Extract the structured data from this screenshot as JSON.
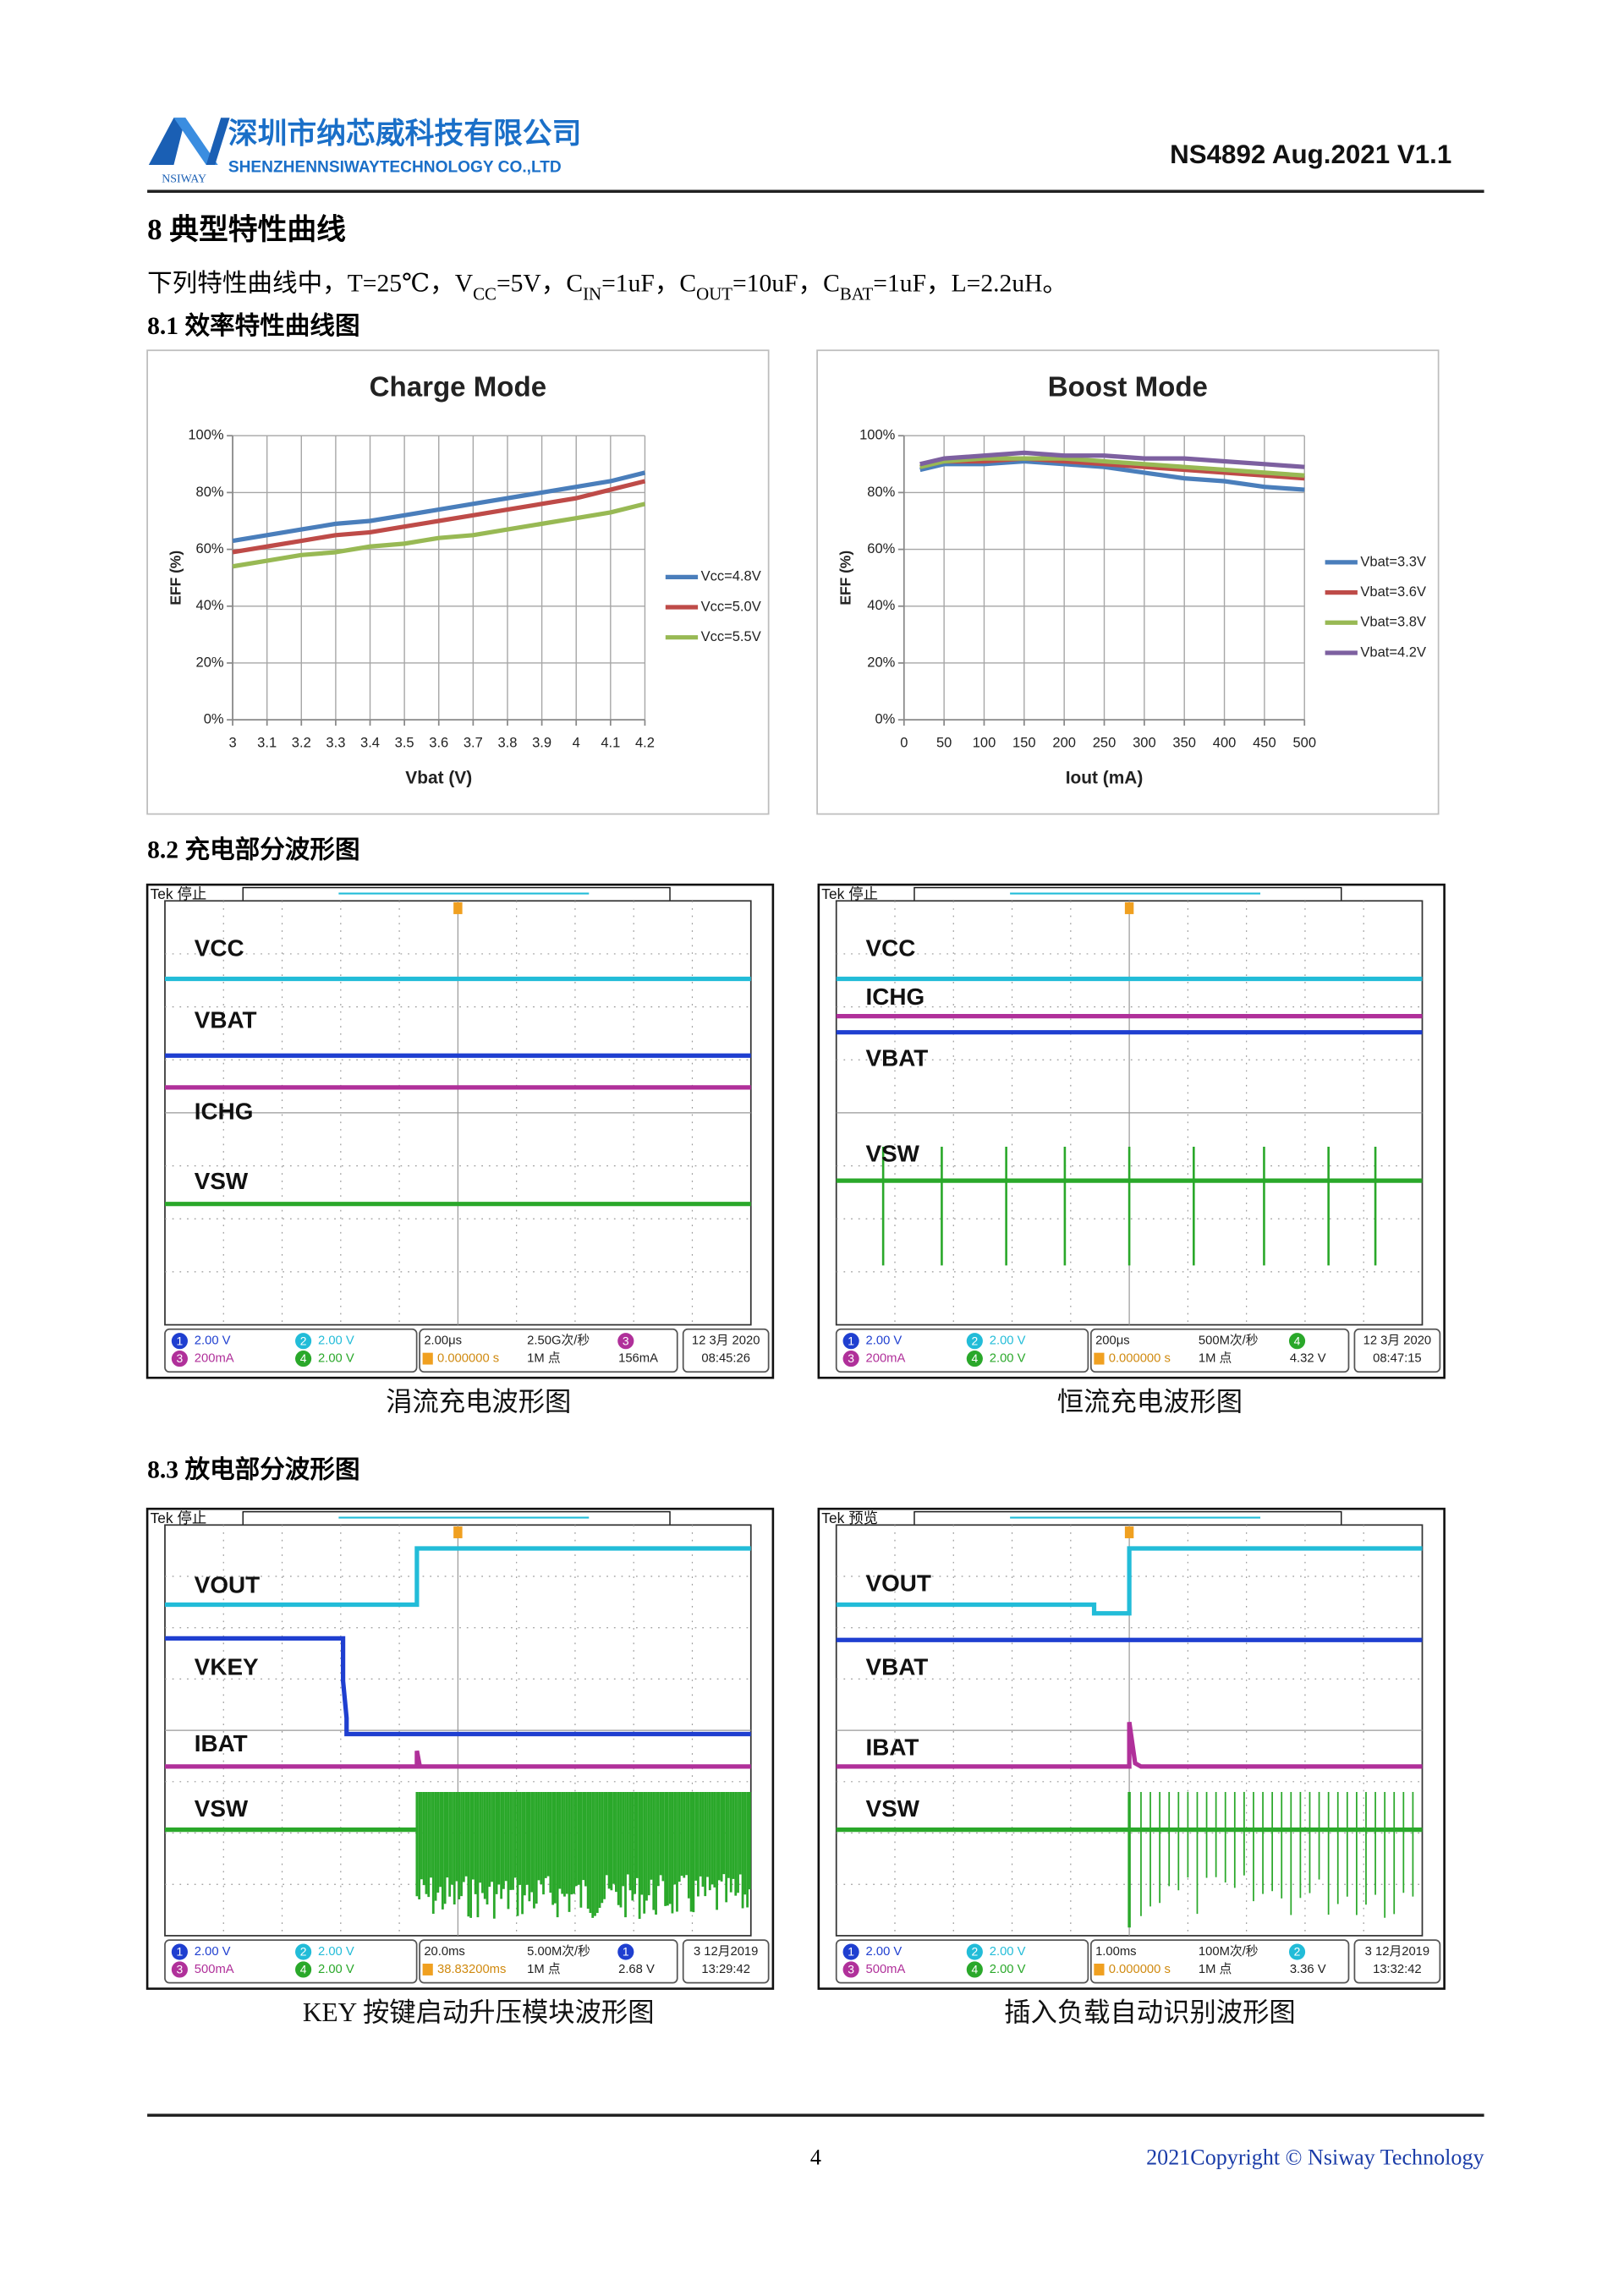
{
  "header": {
    "company_cn": "深圳市纳芯威科技有限公司",
    "company_en": "SHENZHENNSIWAYTECHNOLOGY CO.,LTD",
    "logo_text": "NSIWAY",
    "doc_id": "NS4892 Aug.2021 V1.1"
  },
  "section": {
    "title": "8 典型特性曲线",
    "intro": [
      "下列特性曲线中，T=25℃，V",
      "CC",
      "=5V，C",
      "IN",
      "=1uF，C",
      "OUT",
      "=10uF，C",
      "BAT",
      "=1uF，L=2.2uH。"
    ]
  },
  "subsections": [
    "8.1 效率特性曲线图",
    "8.2 充电部分波形图",
    "8.3 放电部分波形图"
  ],
  "chart_data": [
    {
      "type": "line",
      "title": "Charge Mode",
      "xlabel": "Vbat (V)",
      "ylabel": "EFF (%)",
      "x": [
        3,
        3.1,
        3.2,
        3.3,
        3.4,
        3.5,
        3.6,
        3.7,
        3.8,
        3.9,
        4,
        4.1,
        4.2
      ],
      "series": [
        {
          "name": "Vcc=4.8V",
          "color": "#4a7ebb",
          "values": [
            63,
            65,
            67,
            69,
            70,
            72,
            74,
            76,
            78,
            80,
            82,
            84,
            87
          ]
        },
        {
          "name": "Vcc=5.0V",
          "color": "#be4b48",
          "values": [
            59,
            61,
            63,
            65,
            66,
            68,
            70,
            72,
            74,
            76,
            78,
            81,
            84
          ]
        },
        {
          "name": "Vcc=5.5V",
          "color": "#98b954",
          "values": [
            54,
            56,
            58,
            59,
            61,
            62,
            64,
            65,
            67,
            69,
            71,
            73,
            76
          ]
        }
      ],
      "xlim": [
        3,
        4.2
      ],
      "xticks": [
        3,
        3.1,
        3.2,
        3.3,
        3.4,
        3.5,
        3.6,
        3.7,
        3.8,
        3.9,
        4,
        4.1,
        4.2
      ],
      "ylim": [
        0,
        100
      ],
      "yticks": [
        {
          "value": 0,
          "label": "0%"
        },
        {
          "value": 20,
          "label": "20%"
        },
        {
          "value": 40,
          "label": "40%"
        },
        {
          "value": 60,
          "label": "60%"
        },
        {
          "value": 80,
          "label": "80%"
        },
        {
          "value": 100,
          "label": "100%"
        }
      ],
      "grid": true,
      "legend": "right"
    },
    {
      "type": "line",
      "title": "Boost Mode",
      "xlabel": "Iout (mA)",
      "ylabel": "EFF (%)",
      "x": [
        20,
        50,
        100,
        150,
        200,
        250,
        300,
        350,
        400,
        450,
        500
      ],
      "series": [
        {
          "name": "Vbat=3.3V",
          "color": "#4a7ebb",
          "values": [
            88,
            90,
            90,
            91,
            90,
            89,
            87,
            85,
            84,
            82,
            81
          ]
        },
        {
          "name": "Vbat=3.6V",
          "color": "#be4b48",
          "values": [
            89,
            91,
            91,
            92,
            91,
            90,
            89,
            88,
            87,
            86,
            85
          ]
        },
        {
          "name": "Vbat=3.8V",
          "color": "#98b954",
          "values": [
            89,
            91,
            92,
            92,
            92,
            91,
            90,
            89,
            88,
            87,
            86
          ]
        },
        {
          "name": "Vbat=4.2V",
          "color": "#7d60a0",
          "values": [
            90,
            92,
            93,
            94,
            93,
            93,
            92,
            92,
            91,
            90,
            89
          ]
        }
      ],
      "xlim": [
        0,
        500
      ],
      "xticks": [
        0,
        50,
        100,
        150,
        200,
        250,
        300,
        350,
        400,
        450,
        500
      ],
      "ylim": [
        0,
        100
      ],
      "yticks": [
        {
          "value": 0,
          "label": "0%"
        },
        {
          "value": 20,
          "label": "20%"
        },
        {
          "value": 40,
          "label": "40%"
        },
        {
          "value": 60,
          "label": "60%"
        },
        {
          "value": 80,
          "label": "80%"
        },
        {
          "value": 100,
          "label": "100%"
        }
      ],
      "grid": true,
      "legend": "right"
    }
  ],
  "scope_colors": {
    "1": "#1f3fd0",
    "2": "#22bcd8",
    "3": "#b0309a",
    "4": "#2aa82a"
  },
  "scopes": [
    {
      "tek": "Tek 停止",
      "labels": [
        "VCC",
        "VBAT",
        "ICHG",
        "VSW"
      ],
      "channels": [
        {
          "id": "1",
          "value": "2.00 V"
        },
        {
          "id": "2",
          "value": "2.00 V"
        },
        {
          "id": "3",
          "value": "200mA"
        },
        {
          "id": "4",
          "value": "2.00 V"
        }
      ],
      "timebase": "2.00μs",
      "trigger": "0.000000 s",
      "rate": "2.50G次/秒",
      "points": "1M 点",
      "trig_ch": "3",
      "trig_level": "156mA",
      "date": "12 3月 2020",
      "time": "08:45:26",
      "caption": "涓流充电波形图"
    },
    {
      "tek": "Tek 停止",
      "labels": [
        "VCC",
        "ICHG",
        "VBAT",
        "VSW"
      ],
      "channels": [
        {
          "id": "1",
          "value": "2.00 V"
        },
        {
          "id": "2",
          "value": "2.00 V"
        },
        {
          "id": "3",
          "value": "200mA"
        },
        {
          "id": "4",
          "value": "2.00 V"
        }
      ],
      "timebase": "200μs",
      "trigger": "0.000000 s",
      "rate": "500M次/秒",
      "points": "1M 点",
      "trig_ch": "4",
      "trig_level": "4.32 V",
      "date": "12 3月 2020",
      "time": "08:47:15",
      "caption": "恒流充电波形图"
    },
    {
      "tek": "Tek 停止",
      "labels": [
        "VOUT",
        "VKEY",
        "IBAT",
        "VSW"
      ],
      "channels": [
        {
          "id": "1",
          "value": "2.00 V"
        },
        {
          "id": "2",
          "value": "2.00 V"
        },
        {
          "id": "3",
          "value": "500mA"
        },
        {
          "id": "4",
          "value": "2.00 V"
        }
      ],
      "timebase": "20.0ms",
      "trigger": "38.83200ms",
      "rate": "5.00M次/秒",
      "points": "1M 点",
      "trig_ch": "1",
      "trig_level": "2.68 V",
      "date": "3 12月2019",
      "time": "13:29:42",
      "caption": "KEY 按键启动升压模块波形图"
    },
    {
      "tek": "Tek 预览",
      "labels": [
        "VOUT",
        "VBAT",
        "IBAT",
        "VSW"
      ],
      "channels": [
        {
          "id": "1",
          "value": "2.00 V"
        },
        {
          "id": "2",
          "value": "2.00 V"
        },
        {
          "id": "3",
          "value": "500mA"
        },
        {
          "id": "4",
          "value": "2.00 V"
        }
      ],
      "timebase": "1.00ms",
      "trigger": "0.000000 s",
      "rate": "100M次/秒",
      "points": "1M 点",
      "trig_ch": "2",
      "trig_level": "3.36 V",
      "date": "3 12月2019",
      "time": "13:32:42",
      "caption": "插入负载自动识别波形图"
    }
  ],
  "footer": {
    "page": "4",
    "copyright": "2021Copyright © Nsiway Technology"
  }
}
